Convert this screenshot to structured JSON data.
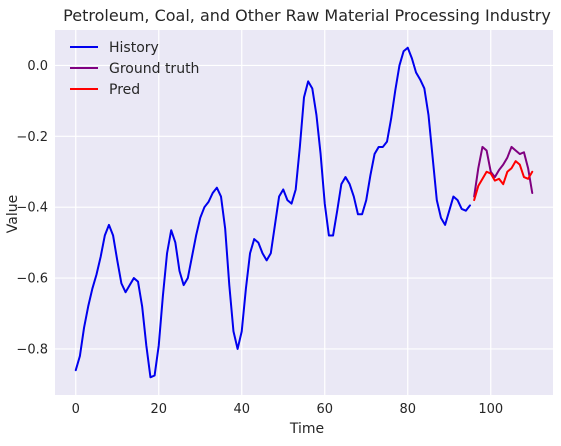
{
  "chart_data": {
    "type": "line",
    "title": "Petroleum, Coal, and Other Raw Material Processing Industry",
    "xlabel": "Time",
    "ylabel": "Value",
    "xlim": [
      -5,
      115
    ],
    "ylim": [
      -0.93,
      0.1
    ],
    "xticks": [
      0,
      20,
      40,
      60,
      80,
      100
    ],
    "yticks": [
      0.0,
      -0.2,
      -0.4,
      -0.6,
      -0.8
    ],
    "ytick_labels": [
      "0.0",
      "−0.2",
      "−0.4",
      "−0.6",
      "−0.8"
    ],
    "grid": true,
    "legend_position": "top-left",
    "colors": {
      "plot_bg": "#eae8f5",
      "grid": "#ffffff"
    },
    "series": [
      {
        "name": "History",
        "color": "#0000ee",
        "x": [
          0,
          1,
          2,
          3,
          4,
          5,
          6,
          7,
          8,
          9,
          10,
          11,
          12,
          13,
          14,
          15,
          16,
          17,
          18,
          19,
          20,
          21,
          22,
          23,
          24,
          25,
          26,
          27,
          28,
          29,
          30,
          31,
          32,
          33,
          34,
          35,
          36,
          37,
          38,
          39,
          40,
          41,
          42,
          43,
          44,
          45,
          46,
          47,
          48,
          49,
          50,
          51,
          52,
          53,
          54,
          55,
          56,
          57,
          58,
          59,
          60,
          61,
          62,
          63,
          64,
          65,
          66,
          67,
          68,
          69,
          70,
          71,
          72,
          73,
          74,
          75,
          76,
          77,
          78,
          79,
          80,
          81,
          82,
          83,
          84,
          85,
          86,
          87,
          88,
          89,
          90,
          91,
          92,
          93,
          94,
          95
        ],
        "y": [
          -0.86,
          -0.82,
          -0.74,
          -0.68,
          -0.63,
          -0.59,
          -0.54,
          -0.48,
          -0.45,
          -0.48,
          -0.55,
          -0.615,
          -0.64,
          -0.62,
          -0.6,
          -0.61,
          -0.68,
          -0.79,
          -0.88,
          -0.875,
          -0.79,
          -0.65,
          -0.53,
          -0.465,
          -0.5,
          -0.58,
          -0.62,
          -0.6,
          -0.54,
          -0.48,
          -0.43,
          -0.4,
          -0.385,
          -0.36,
          -0.345,
          -0.37,
          -0.46,
          -0.62,
          -0.75,
          -0.8,
          -0.75,
          -0.63,
          -0.53,
          -0.49,
          -0.5,
          -0.53,
          -0.55,
          -0.53,
          -0.45,
          -0.37,
          -0.35,
          -0.38,
          -0.39,
          -0.35,
          -0.23,
          -0.09,
          -0.045,
          -0.065,
          -0.14,
          -0.25,
          -0.39,
          -0.48,
          -0.48,
          -0.41,
          -0.335,
          -0.315,
          -0.335,
          -0.37,
          -0.42,
          -0.42,
          -0.38,
          -0.31,
          -0.25,
          -0.23,
          -0.23,
          -0.215,
          -0.15,
          -0.07,
          0.0,
          0.04,
          0.05,
          0.02,
          -0.02,
          -0.04,
          -0.065,
          -0.14,
          -0.26,
          -0.38,
          -0.43,
          -0.45,
          -0.41,
          -0.37,
          -0.38,
          -0.405,
          -0.41,
          -0.395
        ]
      },
      {
        "name": "Ground truth",
        "color": "#800080",
        "x": [
          96,
          97,
          98,
          99,
          100,
          101,
          102,
          103,
          104,
          105,
          106,
          107,
          108,
          109,
          110
        ],
        "y": [
          -0.37,
          -0.29,
          -0.23,
          -0.24,
          -0.3,
          -0.315,
          -0.295,
          -0.28,
          -0.26,
          -0.23,
          -0.24,
          -0.25,
          -0.245,
          -0.29,
          -0.36
        ]
      },
      {
        "name": "Pred",
        "color": "#ff0000",
        "x": [
          96,
          97,
          98,
          99,
          100,
          101,
          102,
          103,
          104,
          105,
          106,
          107,
          108,
          109,
          110
        ],
        "y": [
          -0.38,
          -0.34,
          -0.32,
          -0.3,
          -0.305,
          -0.325,
          -0.32,
          -0.335,
          -0.3,
          -0.29,
          -0.27,
          -0.28,
          -0.315,
          -0.32,
          -0.3
        ]
      }
    ]
  }
}
